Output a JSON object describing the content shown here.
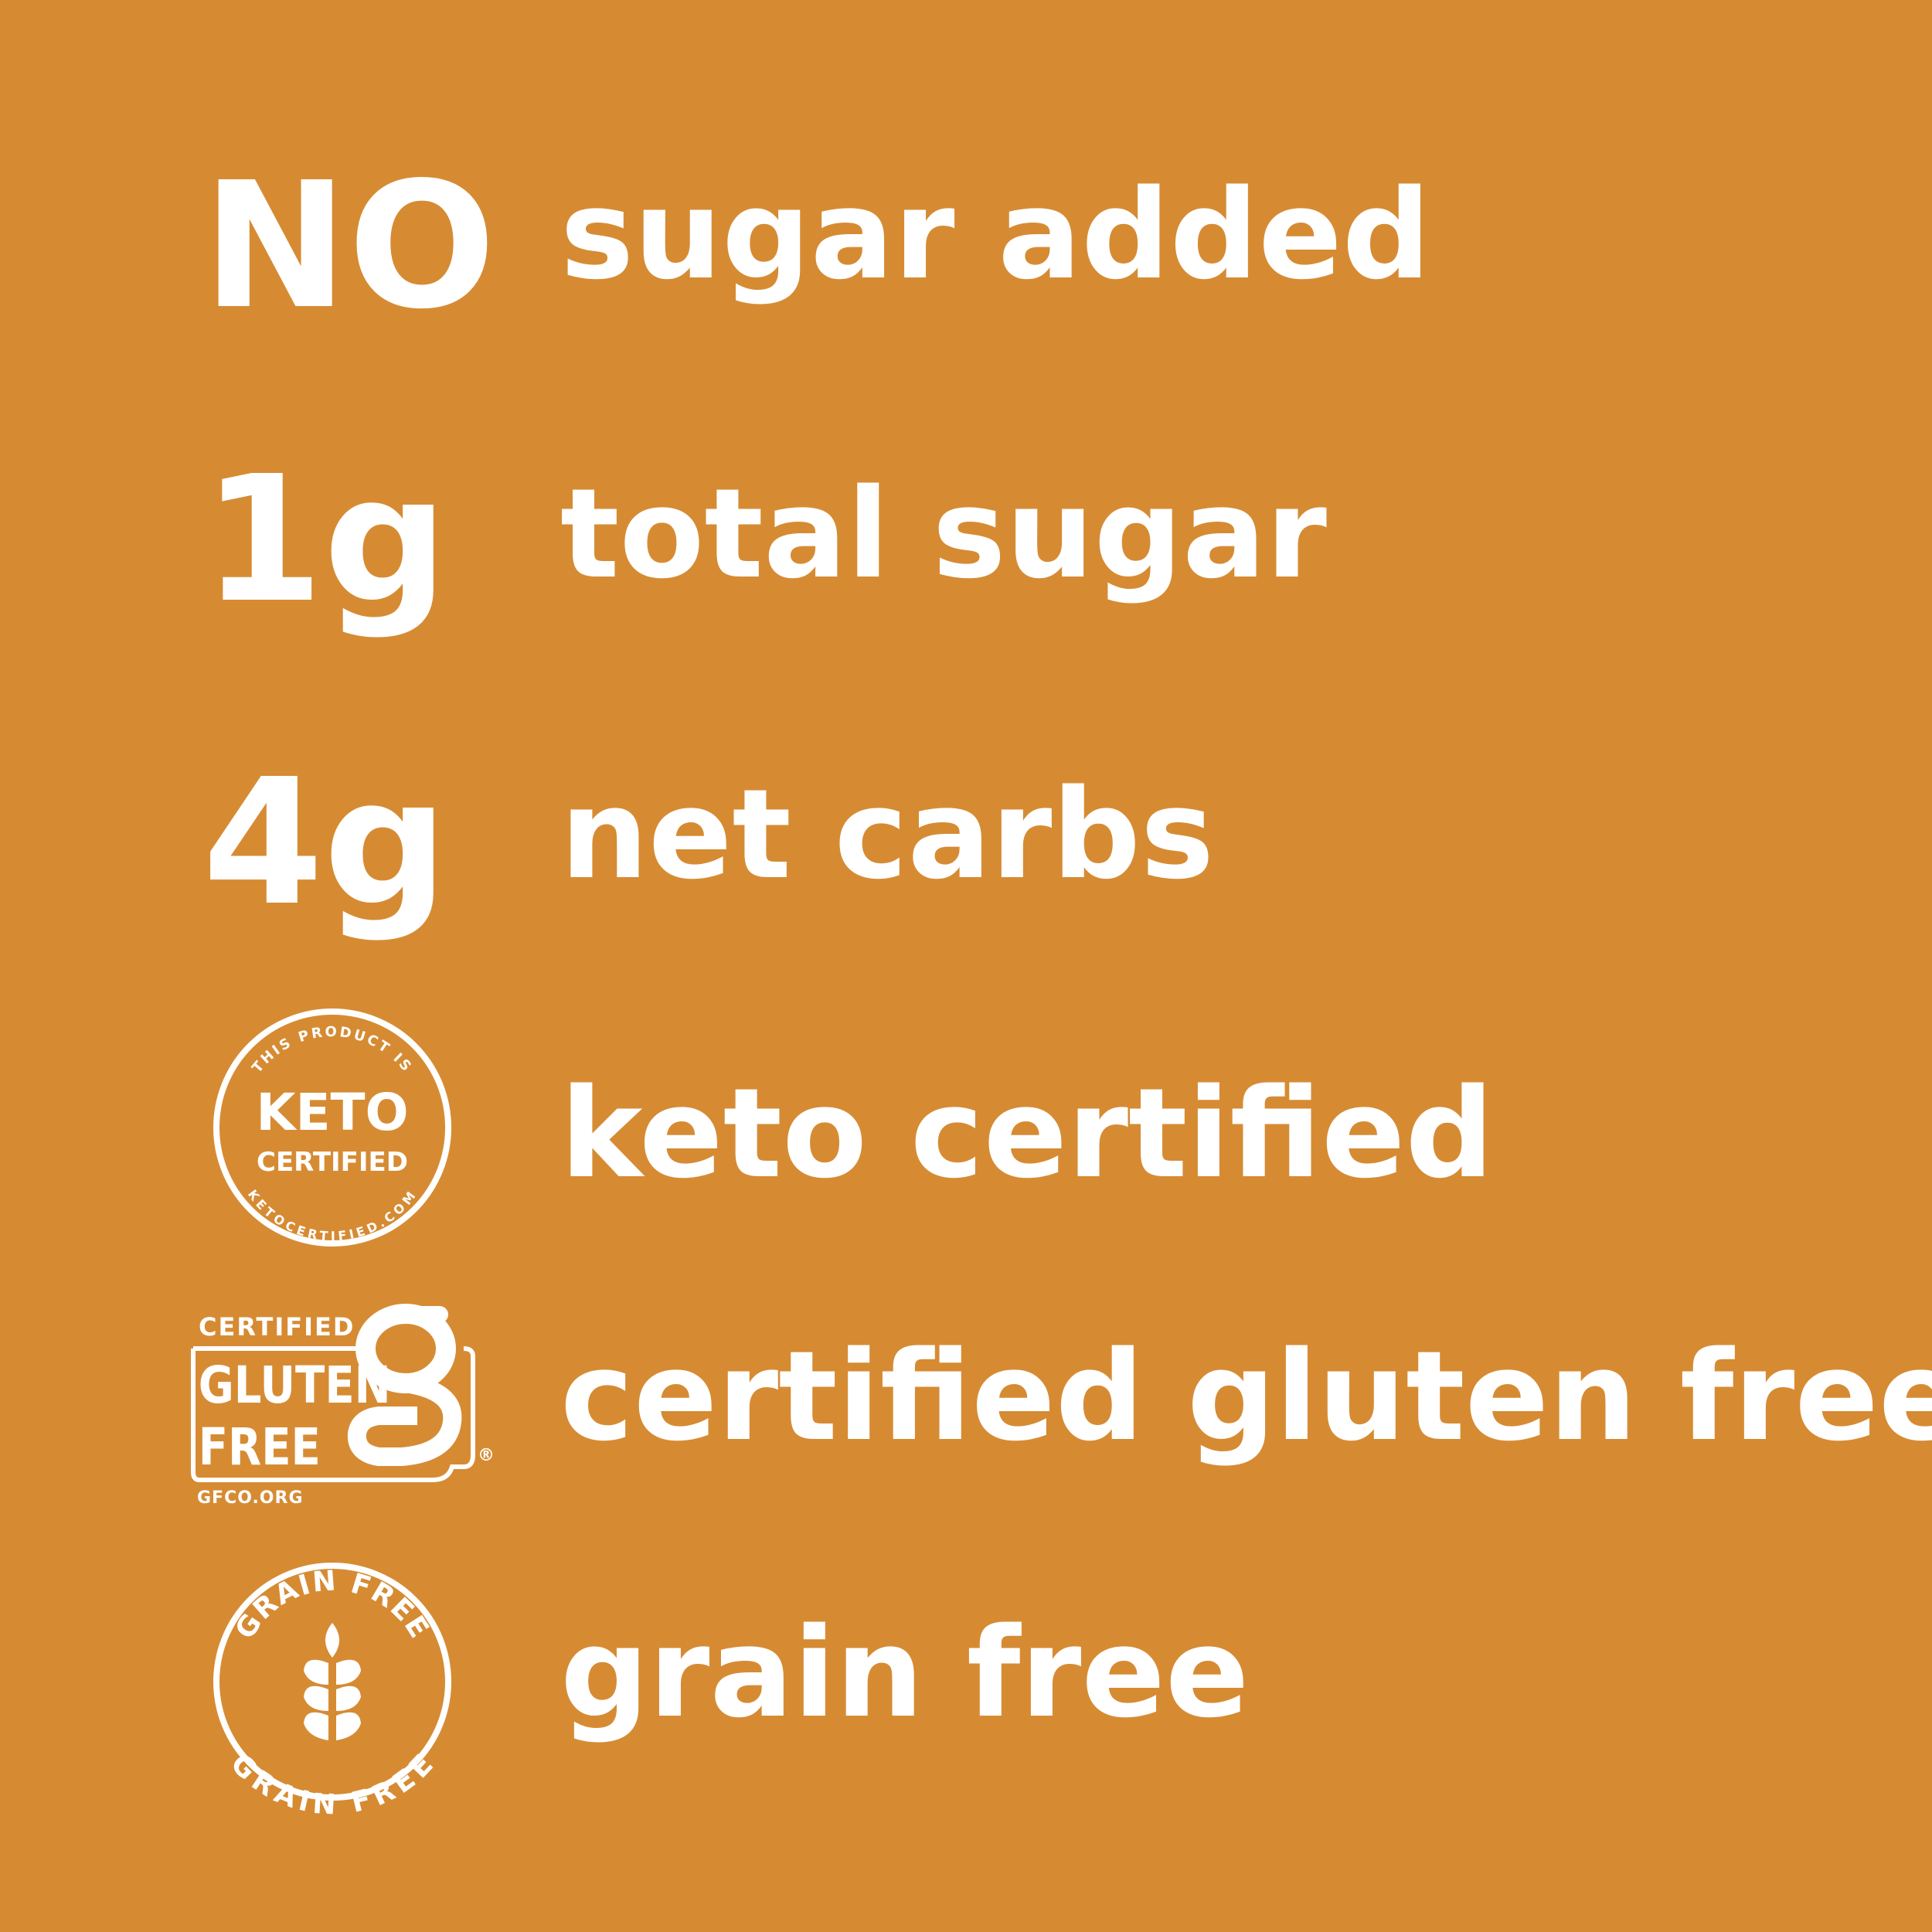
{
  "colors": {
    "background": "#D68B33",
    "foreground": "#FFFFFF"
  },
  "rows": [
    {
      "lead": "NO",
      "text": "sugar added"
    },
    {
      "lead": "1g",
      "text": "total sugar"
    },
    {
      "lead": "4g",
      "text": "net carbs"
    },
    {
      "text": "keto certified"
    },
    {
      "text": "certified gluten free"
    },
    {
      "text": "grain free"
    }
  ],
  "badges": {
    "keto": {
      "top_arc": "THIS PRODUCT IS",
      "line1": "KETO",
      "line2": "CERTIFIED",
      "bottom_arc": "KETOCERTIFIED.COM"
    },
    "gluten": {
      "top": "CERTIFIED",
      "line1": "GLUTEN",
      "line2": "FREE",
      "url": "GFCO.ORG",
      "mark": "®"
    },
    "grain": {
      "top_arc": "GRAIN FREE",
      "bottom_arc": "GRAIN FREE",
      "icon": "wheat-icon"
    }
  }
}
